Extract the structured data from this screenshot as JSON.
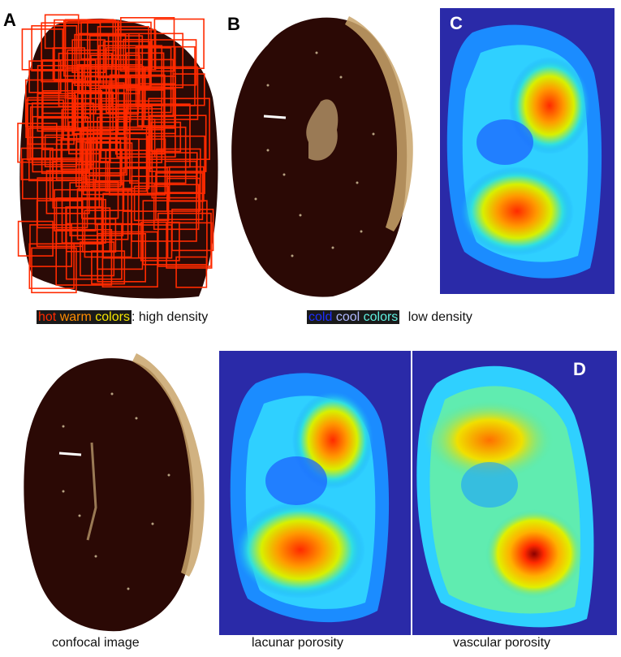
{
  "panels": {
    "a": {
      "label": "A"
    },
    "b": {
      "label": "B"
    },
    "c": {
      "label": "C"
    },
    "d": {
      "label": "D"
    }
  },
  "legend": {
    "hot": "hot",
    "warm": "warm",
    "colors_hot": "colors",
    "hot_suffix": ": high density",
    "cold": "cold",
    "cool": "cool",
    "colors_cool": "colors",
    "cold_suffix": "low density"
  },
  "captions": {
    "confocal": "confocal image",
    "lacunar": "lacunar porosity",
    "vascular": "vascular porosity"
  },
  "colors": {
    "hot": "#ff2a00",
    "warm": "#ff8c00",
    "yellow": "#f5e600",
    "cold": "#1e2fff",
    "cool": "#b0b8ff",
    "cyan": "#5ff0e0",
    "heatmap_bg": "#2a2aa8",
    "tissue": "#2a0a06",
    "roi": "#ff2a00"
  }
}
